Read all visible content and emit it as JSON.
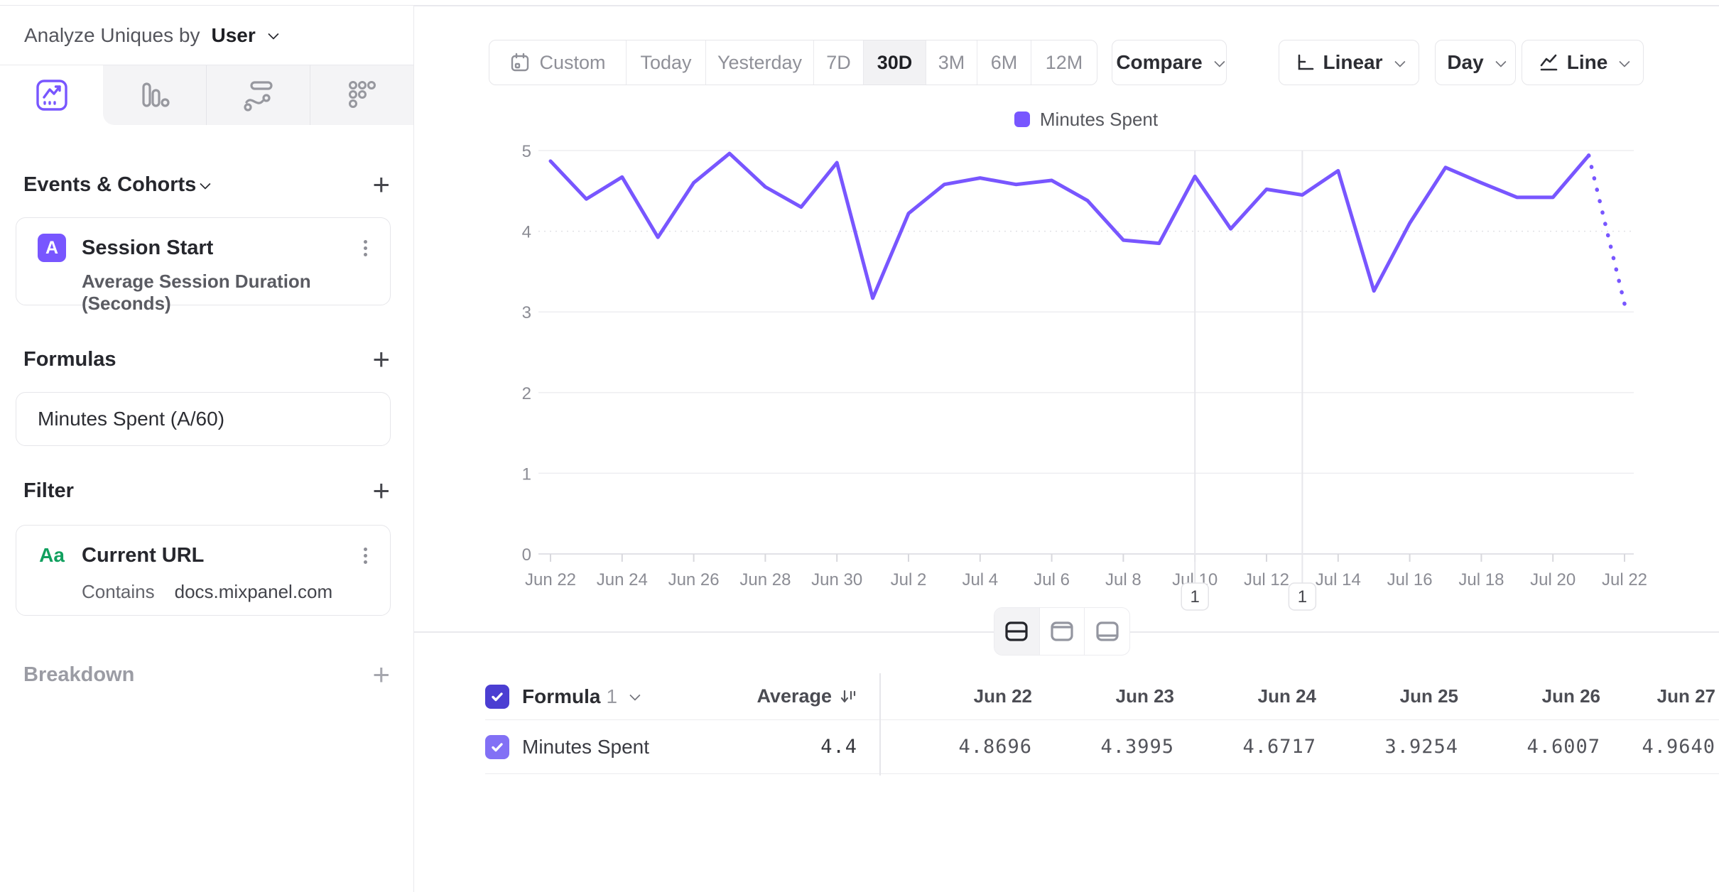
{
  "colors": {
    "accent_purple": "#7856ff",
    "checkbox_header": "#4b3ed2",
    "checkbox_row": "#8270f5",
    "string_property_green": "#11a05f",
    "active_segment_bg": "#f2f2f4",
    "border": "#e6e6ea"
  },
  "sidebar": {
    "analyze_label": "Analyze Uniques by",
    "analyze_value": "User",
    "tabs": [
      "insights-line",
      "bar",
      "flow",
      "metrics"
    ],
    "events_header": "Events & Cohorts",
    "event": {
      "badge": "A",
      "title": "Session Start",
      "metric": "Average Session Duration (Seconds)"
    },
    "formulas_header": "Formulas",
    "formula": "Minutes Spent (A/60)",
    "filter_header": "Filter",
    "filter": {
      "badge": "Aa",
      "title": "Current URL",
      "operator": "Contains",
      "value": "docs.mixpanel.com"
    },
    "breakdown_header": "Breakdown"
  },
  "toolbar": {
    "ranges": [
      {
        "label": "Custom"
      },
      {
        "label": "Today"
      },
      {
        "label": "Yesterday"
      },
      {
        "label": "7D"
      },
      {
        "label": "30D",
        "active": true
      },
      {
        "label": "3M"
      },
      {
        "label": "6M"
      },
      {
        "label": "12M"
      }
    ],
    "compare": "Compare",
    "scale": "Linear",
    "granularity": "Day",
    "chart_type": "Line"
  },
  "chart_data": {
    "type": "line",
    "title": "",
    "xlabel": "",
    "ylabel": "",
    "legend": [
      "Minutes Spent"
    ],
    "legend_position": "top-center",
    "series_color": "#7856ff",
    "grid": "horizontal",
    "ylim": [
      0,
      5
    ],
    "y_ticks": [
      0,
      1,
      2,
      3,
      4,
      5
    ],
    "x_tick_every": 2,
    "x": [
      "Jun 22",
      "Jun 23",
      "Jun 24",
      "Jun 25",
      "Jun 26",
      "Jun 27",
      "Jun 28",
      "Jun 29",
      "Jun 30",
      "Jul 1",
      "Jul 2",
      "Jul 3",
      "Jul 4",
      "Jul 5",
      "Jul 6",
      "Jul 7",
      "Jul 8",
      "Jul 9",
      "Jul 10",
      "Jul 11",
      "Jul 12",
      "Jul 13",
      "Jul 14",
      "Jul 15",
      "Jul 16",
      "Jul 17",
      "Jul 18",
      "Jul 19",
      "Jul 20",
      "Jul 21",
      "Jul 22"
    ],
    "values": [
      4.8696,
      4.3995,
      4.6717,
      3.9254,
      4.6007,
      4.964,
      4.55,
      4.3,
      4.85,
      3.17,
      4.22,
      4.58,
      4.66,
      4.58,
      4.63,
      4.38,
      3.89,
      3.85,
      4.68,
      4.03,
      4.52,
      4.45,
      4.75,
      3.26,
      4.1,
      4.79,
      4.6,
      4.42,
      4.42,
      4.94,
      3.1
    ],
    "last_segment_dotted": true,
    "annotations": [
      {
        "x": "Jul 10",
        "label": "1"
      },
      {
        "x": "Jul 13",
        "label": "1"
      }
    ]
  },
  "table": {
    "group_label": "Formula",
    "group_index": "1",
    "average_label": "Average",
    "row_label": "Minutes Spent",
    "average_value": "4.4",
    "columns": [
      "Jun 22",
      "Jun 23",
      "Jun 24",
      "Jun 25",
      "Jun 26",
      "Jun 27"
    ],
    "values": [
      "4.8696",
      "4.3995",
      "4.6717",
      "3.9254",
      "4.6007",
      "4.9640"
    ]
  }
}
